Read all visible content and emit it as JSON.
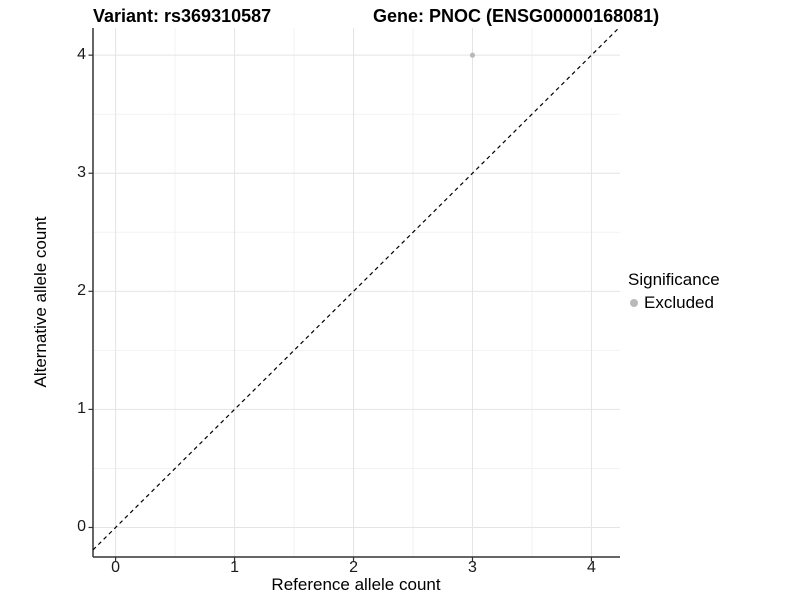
{
  "chart_data": {
    "type": "scatter",
    "title_left": "Variant: rs369310587",
    "title_right": "Gene: PNOC (ENSG00000168081)",
    "xlabel": "Reference allele count",
    "ylabel": "Alternative allele count",
    "xlim": [
      -0.19,
      4.24
    ],
    "ylim": [
      -0.25,
      4.23
    ],
    "x_ticks": [
      0,
      1,
      2,
      3,
      4
    ],
    "y_ticks": [
      0,
      1,
      2,
      3,
      4
    ],
    "x_minor": [
      0.5,
      1.5,
      2.5,
      3.5
    ],
    "y_minor": [
      0.5,
      1.5,
      2.5,
      3.5
    ],
    "grid": true,
    "legend_position": "right",
    "series": [
      {
        "name": "Excluded",
        "color": "#b9b9b9",
        "points": [
          {
            "x": 3,
            "y": 4
          }
        ],
        "point_radius": 2.6
      }
    ],
    "reference_line": {
      "kind": "abline",
      "slope": 1,
      "intercept": 0,
      "style": "dashed",
      "color": "#000000",
      "width": 1.2,
      "dash": "4 3.5"
    },
    "legend": {
      "title": "Significance",
      "entries": [
        {
          "label": "Excluded",
          "color": "#b9b9b9"
        }
      ]
    },
    "colors": {
      "background": "#ffffff",
      "panel_background": "#ffffff",
      "grid_major": "#e4e4e4",
      "grid_minor": "#f2f2f2",
      "axis_line": "#333333",
      "tick_mark": "#333333",
      "text": "#000000",
      "point": "#b9b9b9"
    }
  }
}
